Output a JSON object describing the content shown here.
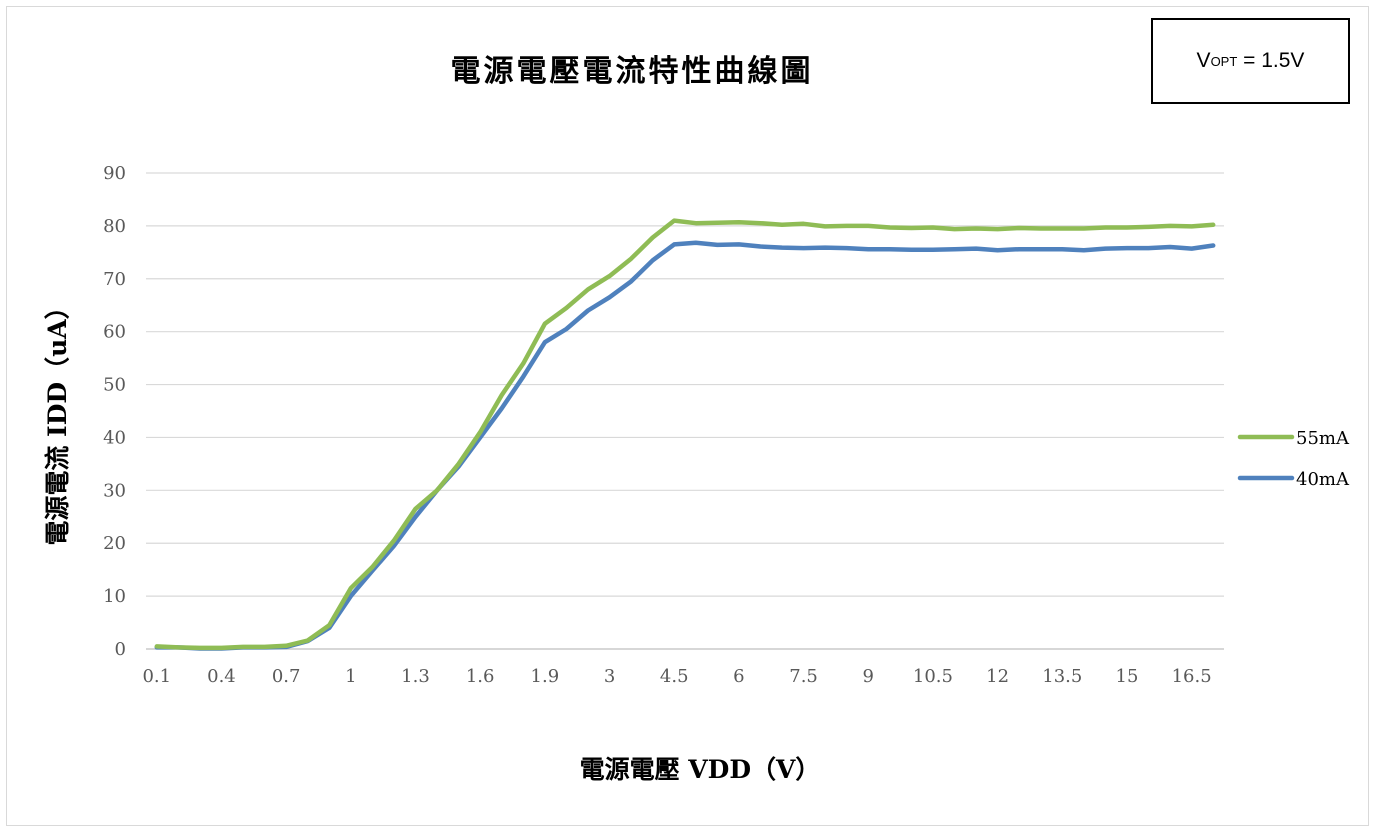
{
  "chart_data": {
    "type": "line",
    "title": "電源電壓電流特性曲線圖",
    "annotation": {
      "main": "V",
      "sub": "OPT",
      "rest": " = 1.5V"
    },
    "xlabel": "電源電壓 VDD（V）",
    "ylabel": "電源電流 IDD（uA）",
    "ylim": [
      0,
      90
    ],
    "yticks": [
      "0",
      "10",
      "20",
      "30",
      "40",
      "50",
      "60",
      "70",
      "80",
      "90"
    ],
    "x": [
      "0.1",
      "0.2",
      "0.3",
      "0.4",
      "0.5",
      "0.6",
      "0.7",
      "0.8",
      "0.9",
      "1",
      "1.1",
      "1.2",
      "1.3",
      "1.4",
      "1.5",
      "1.6",
      "1.7",
      "1.8",
      "1.9",
      "2",
      "2.5",
      "3",
      "3.5",
      "4",
      "4.5",
      "5",
      "5.5",
      "6",
      "6.5",
      "7",
      "7.5",
      "8",
      "8.5",
      "9",
      "9.5",
      "10",
      "10.5",
      "11",
      "11.5",
      "12",
      "12.5",
      "13",
      "13.5",
      "14",
      "14.5",
      "15",
      "15.5",
      "16",
      "16.5",
      "17"
    ],
    "xtick_labels": [
      "0.1",
      "0.4",
      "0.7",
      "1",
      "1.3",
      "1.6",
      "1.9",
      "3",
      "4.5",
      "6",
      "7.5",
      "9",
      "10.5",
      "12",
      "13.5",
      "15",
      "16.5"
    ],
    "grid": true,
    "legend_position": "right",
    "series": [
      {
        "name": "55mA",
        "color": "#8fbc55",
        "values": [
          0.5,
          0.3,
          0.2,
          0.2,
          0.4,
          0.4,
          0.6,
          1.6,
          4.5,
          11.5,
          15.5,
          20.5,
          26.5,
          30,
          35,
          41,
          48,
          54,
          61.5,
          64.5,
          68,
          70.5,
          73.8,
          77.8,
          81,
          80.5,
          80.6,
          80.7,
          80.5,
          80.2,
          80.4,
          79.9,
          80,
          80,
          79.7,
          79.6,
          79.7,
          79.4,
          79.5,
          79.4,
          79.6,
          79.5,
          79.5,
          79.5,
          79.7,
          79.7,
          79.8,
          80,
          79.9,
          80.2
        ]
      },
      {
        "name": "40mA",
        "color": "#4f81bd",
        "values": [
          0.3,
          0.3,
          0.1,
          0.1,
          0.3,
          0.3,
          0.4,
          1.5,
          4,
          10,
          14.8,
          19.5,
          25,
          30,
          34.5,
          40,
          45.5,
          51.5,
          58,
          60.5,
          64,
          66.5,
          69.5,
          73.5,
          76.5,
          76.8,
          76.4,
          76.5,
          76.1,
          75.9,
          75.8,
          75.9,
          75.8,
          75.6,
          75.6,
          75.5,
          75.5,
          75.6,
          75.7,
          75.4,
          75.6,
          75.6,
          75.6,
          75.4,
          75.7,
          75.8,
          75.8,
          76,
          75.7,
          76.3
        ]
      }
    ]
  }
}
